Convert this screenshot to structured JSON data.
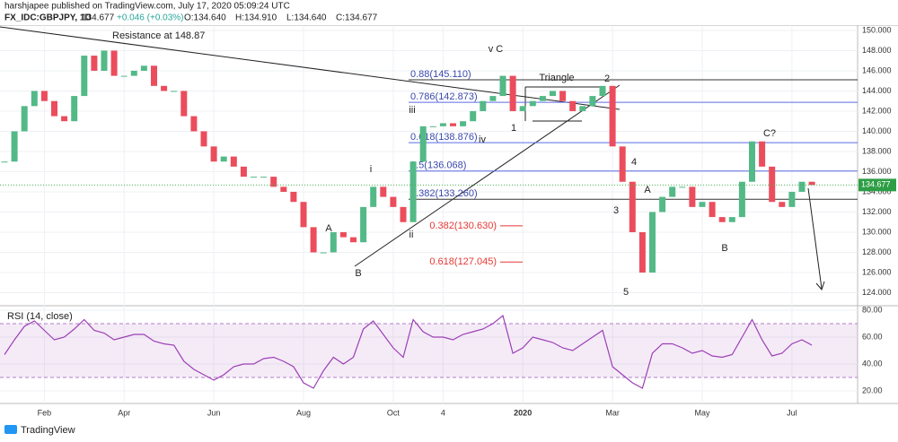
{
  "header": {
    "author_line": "harshjapee published on TradingView.com, July 17, 2020 05:09:24 UTC",
    "symbol": "FX_IDC:GBPJPY, 1D",
    "price": "134.677",
    "change": "+0.046 (+0.03%)",
    "open": "O:134.640",
    "high": "H:134.910",
    "low": "L:134.640",
    "close": "C:134.677",
    "brand": "TradingView"
  },
  "chart_data": [
    {
      "type": "candlestick",
      "categories": [
        null,
        null,
        null,
        null,
        "Feb",
        null,
        null,
        null,
        null,
        null,
        null,
        null,
        "Apr",
        null,
        null,
        null,
        null,
        null,
        null,
        null,
        null,
        "Jun",
        null,
        null,
        null,
        null,
        null,
        null,
        null,
        null,
        "Aug",
        null,
        null,
        null,
        null,
        null,
        null,
        null,
        null,
        "Oct",
        null,
        null,
        null,
        null,
        "4",
        null,
        null,
        null,
        null,
        null,
        null,
        null,
        "2020",
        null,
        null,
        null,
        null,
        null,
        null,
        null,
        null,
        "Mar",
        null,
        null,
        null,
        null,
        null,
        null,
        null,
        null,
        "May",
        null,
        null,
        null,
        null,
        null,
        null,
        null,
        null,
        "Jul",
        null,
        null
      ],
      "values": [
        137,
        140,
        142.5,
        144,
        143,
        141.5,
        141,
        143.5,
        147.5,
        146,
        148,
        145.5,
        145.5,
        146,
        146.5,
        144.5,
        144,
        144,
        141.5,
        140,
        138.5,
        137,
        137.5,
        136.5,
        135.5,
        135.5,
        135.5,
        134.5,
        134,
        133,
        130.5,
        128,
        128,
        130,
        129.5,
        129,
        132.5,
        134.5,
        133.5,
        132.5,
        131,
        137,
        140.5,
        140.5,
        140.8,
        140.5,
        141,
        142,
        143,
        143.5,
        145.5,
        142,
        142.5,
        143,
        143.5,
        144,
        143,
        142,
        142.5,
        143.5,
        144.5,
        138.5,
        135,
        130,
        126,
        132,
        133.5,
        134.5,
        134.5,
        132.5,
        133,
        131.5,
        131,
        131.5,
        135,
        139,
        136.5,
        133,
        132.5,
        134,
        135,
        134.677
      ],
      "up_color": "#53b987",
      "down_color": "#eb4d5c",
      "ylim": [
        122.8,
        150.35
      ],
      "yticks": [
        {
          "value": 150,
          "label": "150.000"
        },
        {
          "value": 148,
          "label": "148.000"
        },
        {
          "value": 146,
          "label": "146.000"
        },
        {
          "value": 144,
          "label": "144.000"
        },
        {
          "value": 142,
          "label": "142.000"
        },
        {
          "value": 140,
          "label": "140.000"
        },
        {
          "value": 138,
          "label": "138.000"
        },
        {
          "value": 136,
          "label": "136.000"
        },
        {
          "value": 134,
          "label": "134.000"
        },
        {
          "value": 132,
          "label": "132.000"
        },
        {
          "value": 130,
          "label": "130.000"
        },
        {
          "value": 128,
          "label": "128.000"
        },
        {
          "value": 126,
          "label": "126.000"
        },
        {
          "value": 124,
          "label": "124.000"
        }
      ],
      "grid": true,
      "levels": [
        {
          "text": "0.88(145.110)",
          "value": 145.11,
          "color": "#333333"
        },
        {
          "text": "0.786(142.873)",
          "value": 142.873,
          "color": "#5b6ee1"
        },
        {
          "text": "0.618(138.876)",
          "value": 138.876,
          "color": "#5b6ee1"
        },
        {
          "text": "0.5(136.068)",
          "value": 136.068,
          "color": "#5b6ee1"
        },
        {
          "text": "0.382(133.260)",
          "value": 133.26,
          "color": "#333333"
        },
        {
          "text": "0.382(130.630)",
          "value": 130.63,
          "color": "#e53935"
        },
        {
          "text": "0.618(127.045)",
          "value": 127.045,
          "color": "#e53935"
        }
      ],
      "labels": [
        "Resistance at 148.87",
        "v C",
        "Triangle",
        "2",
        "1",
        "iii",
        "iv",
        "i",
        "ii",
        "A",
        "B",
        "4",
        "3",
        "5",
        "A",
        "B",
        "C?"
      ]
    },
    {
      "type": "line",
      "title": "RSI (14, close)",
      "color": "#9c3fb5",
      "values": [
        47,
        58,
        68,
        72,
        65,
        58,
        60,
        66,
        73,
        65,
        63,
        58,
        60,
        62,
        62,
        57,
        55,
        54,
        42,
        36,
        32,
        28,
        32,
        38,
        40,
        40,
        44,
        45,
        42,
        38,
        26,
        22,
        35,
        45,
        40,
        45,
        66,
        72,
        62,
        52,
        45,
        73,
        64,
        60,
        60,
        58,
        62,
        64,
        66,
        70,
        76,
        48,
        52,
        60,
        58,
        56,
        52,
        50,
        55,
        60,
        65,
        38,
        32,
        26,
        22,
        48,
        55,
        55,
        52,
        48,
        50,
        46,
        45,
        47,
        60,
        73,
        58,
        46,
        48,
        55,
        58,
        54
      ],
      "ylim": [
        13.3,
        82
      ],
      "yticks": [
        {
          "value": 80,
          "label": "80.00"
        },
        {
          "value": 60,
          "label": "60.00"
        },
        {
          "value": 40,
          "label": "40.00"
        },
        {
          "value": 20,
          "label": "20.00"
        }
      ],
      "band": [
        30,
        70
      ]
    }
  ]
}
